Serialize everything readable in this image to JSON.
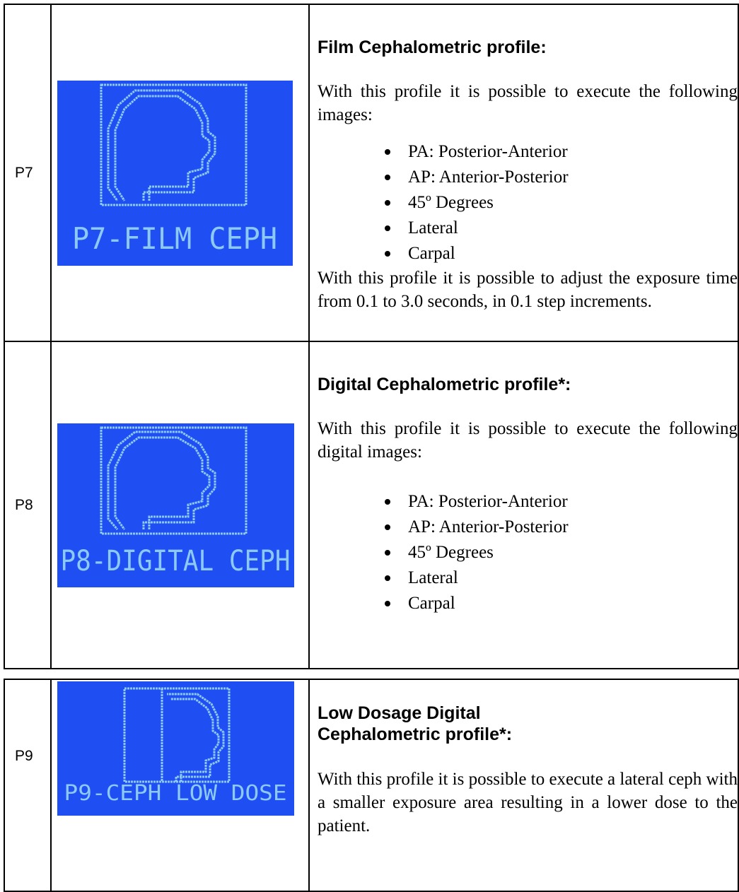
{
  "table1": {
    "rows": [
      {
        "id": "P7",
        "screen_label": "P7-FILM CEPH",
        "heading": "Film Cephalometric profile:",
        "intro": "With this profile it is possible to execute the following images:",
        "items": [
          "PA: Posterior-Anterior",
          "AP: Anterior-Posterior",
          "45º Degrees",
          "Lateral",
          "Carpal"
        ],
        "outro": "With this profile it is possible to adjust the exposure time from 0.1 to 3.0 seconds, in 0.1 step increments."
      },
      {
        "id": "P8",
        "screen_label": "P8-DIGITAL CEPH",
        "heading": "Digital Cephalometric profile*:",
        "intro": "With this profile it is possible to execute the following digital images:",
        "items": [
          "PA: Posterior-Anterior",
          "AP: Anterior-Posterior",
          "45º Degrees",
          "Lateral",
          "Carpal"
        ]
      }
    ]
  },
  "table2": {
    "rows": [
      {
        "id": "P9",
        "screen_label": "P9-CEPH LOW DOSE",
        "heading": "Low Dosage Digital Cephalometric profile*:",
        "intro": "With this profile it is possible to execute a lateral ceph with a smaller exposure area resulting in a lower dose to the patient."
      }
    ]
  }
}
